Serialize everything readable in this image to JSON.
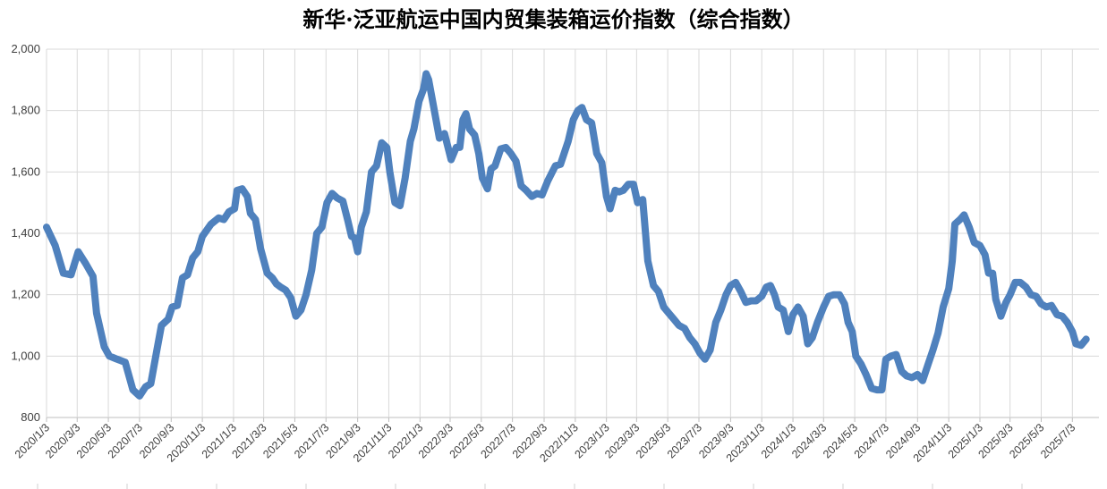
{
  "chart_data": {
    "type": "line",
    "title": "新华·泛亚航运中国内贸集装箱运价指数（综合指数）",
    "xlabel": "",
    "ylabel": "",
    "ylim": [
      800,
      2000
    ],
    "yticks": [
      "800",
      "1,000",
      "1,200",
      "1,400",
      "1,600",
      "1,800",
      "2,000"
    ],
    "ytick_values": [
      800,
      1000,
      1200,
      1400,
      1600,
      1800,
      2000
    ],
    "xticks": [
      "2020/1/3",
      "2020/3/3",
      "2020/5/3",
      "2020/7/3",
      "2020/9/3",
      "2020/11/3",
      "2021/1/3",
      "2021/3/3",
      "2021/5/3",
      "2021/7/3",
      "2021/9/3",
      "2021/11/3",
      "2022/1/3",
      "2022/3/3",
      "2022/5/3",
      "2022/7/3",
      "2022/9/3",
      "2022/11/3",
      "2023/1/3",
      "2023/3/3",
      "2023/5/3",
      "2023/7/3",
      "2023/9/3",
      "2023/11/3",
      "2024/1/3",
      "2024/3/3",
      "2024/5/3",
      "2024/7/3",
      "2024/9/3",
      "2024/11/3",
      "2025/1/3",
      "2025/3/3",
      "2025/5/3",
      "2025/7/3"
    ],
    "grid": true,
    "line_color": "#4F81BD",
    "series": [
      {
        "values": [
          [
            "2020-01-03",
            1420
          ],
          [
            "2020-01-20",
            1360
          ],
          [
            "2020-02-05",
            1270
          ],
          [
            "2020-02-20",
            1265
          ],
          [
            "2020-03-05",
            1340
          ],
          [
            "2020-03-20",
            1300
          ],
          [
            "2020-04-03",
            1260
          ],
          [
            "2020-04-10",
            1140
          ],
          [
            "2020-04-25",
            1030
          ],
          [
            "2020-05-05",
            1000
          ],
          [
            "2020-05-20",
            990
          ],
          [
            "2020-06-05",
            980
          ],
          [
            "2020-06-20",
            890
          ],
          [
            "2020-07-03",
            870
          ],
          [
            "2020-07-15",
            900
          ],
          [
            "2020-07-25",
            910
          ],
          [
            "2020-08-05",
            1010
          ],
          [
            "2020-08-15",
            1100
          ],
          [
            "2020-08-28",
            1120
          ],
          [
            "2020-09-05",
            1160
          ],
          [
            "2020-09-15",
            1165
          ],
          [
            "2020-09-25",
            1255
          ],
          [
            "2020-10-05",
            1265
          ],
          [
            "2020-10-15",
            1320
          ],
          [
            "2020-10-25",
            1340
          ],
          [
            "2020-11-03",
            1390
          ],
          [
            "2020-11-20",
            1430
          ],
          [
            "2020-12-05",
            1450
          ],
          [
            "2020-12-15",
            1445
          ],
          [
            "2020-12-25",
            1470
          ],
          [
            "2021-01-05",
            1480
          ],
          [
            "2021-01-10",
            1540
          ],
          [
            "2021-01-20",
            1545
          ],
          [
            "2021-01-30",
            1520
          ],
          [
            "2021-02-05",
            1465
          ],
          [
            "2021-02-15",
            1445
          ],
          [
            "2021-02-25",
            1350
          ],
          [
            "2021-03-10",
            1270
          ],
          [
            "2021-03-20",
            1255
          ],
          [
            "2021-03-28",
            1235
          ],
          [
            "2021-04-05",
            1225
          ],
          [
            "2021-04-15",
            1215
          ],
          [
            "2021-04-25",
            1190
          ],
          [
            "2021-05-05",
            1130
          ],
          [
            "2021-05-15",
            1150
          ],
          [
            "2021-05-25",
            1200
          ],
          [
            "2021-06-05",
            1280
          ],
          [
            "2021-06-15",
            1400
          ],
          [
            "2021-06-25",
            1420
          ],
          [
            "2021-07-05",
            1500
          ],
          [
            "2021-07-15",
            1530
          ],
          [
            "2021-07-25",
            1515
          ],
          [
            "2021-08-05",
            1505
          ],
          [
            "2021-08-15",
            1440
          ],
          [
            "2021-08-22",
            1390
          ],
          [
            "2021-08-28",
            1385
          ],
          [
            "2021-09-03",
            1340
          ],
          [
            "2021-09-10",
            1420
          ],
          [
            "2021-09-20",
            1470
          ],
          [
            "2021-09-30",
            1600
          ],
          [
            "2021-10-10",
            1620
          ],
          [
            "2021-10-20",
            1695
          ],
          [
            "2021-10-30",
            1680
          ],
          [
            "2021-11-05",
            1600
          ],
          [
            "2021-11-15",
            1500
          ],
          [
            "2021-11-25",
            1490
          ],
          [
            "2021-12-05",
            1580
          ],
          [
            "2021-12-15",
            1700
          ],
          [
            "2021-12-22",
            1740
          ],
          [
            "2022-01-01",
            1830
          ],
          [
            "2022-01-10",
            1870
          ],
          [
            "2022-01-15",
            1920
          ],
          [
            "2022-01-20",
            1900
          ],
          [
            "2022-01-30",
            1810
          ],
          [
            "2022-02-10",
            1710
          ],
          [
            "2022-02-20",
            1725
          ],
          [
            "2022-03-05",
            1640
          ],
          [
            "2022-03-15",
            1680
          ],
          [
            "2022-03-22",
            1680
          ],
          [
            "2022-03-28",
            1770
          ],
          [
            "2022-04-03",
            1790
          ],
          [
            "2022-04-10",
            1740
          ],
          [
            "2022-04-20",
            1720
          ],
          [
            "2022-04-28",
            1660
          ],
          [
            "2022-05-05",
            1580
          ],
          [
            "2022-05-15",
            1545
          ],
          [
            "2022-05-22",
            1610
          ],
          [
            "2022-05-30",
            1620
          ],
          [
            "2022-06-10",
            1675
          ],
          [
            "2022-06-20",
            1680
          ],
          [
            "2022-06-30",
            1660
          ],
          [
            "2022-07-10",
            1635
          ],
          [
            "2022-07-20",
            1555
          ],
          [
            "2022-07-30",
            1540
          ],
          [
            "2022-08-10",
            1520
          ],
          [
            "2022-08-20",
            1530
          ],
          [
            "2022-08-30",
            1525
          ],
          [
            "2022-09-10",
            1570
          ],
          [
            "2022-09-25",
            1620
          ],
          [
            "2022-10-05",
            1625
          ],
          [
            "2022-10-20",
            1700
          ],
          [
            "2022-10-30",
            1770
          ],
          [
            "2022-11-08",
            1800
          ],
          [
            "2022-11-16",
            1810
          ],
          [
            "2022-11-25",
            1770
          ],
          [
            "2022-12-05",
            1760
          ],
          [
            "2022-12-15",
            1660
          ],
          [
            "2022-12-25",
            1630
          ],
          [
            "2023-01-03",
            1520
          ],
          [
            "2023-01-10",
            1480
          ],
          [
            "2023-01-20",
            1540
          ],
          [
            "2023-01-28",
            1535
          ],
          [
            "2023-02-05",
            1540
          ],
          [
            "2023-02-15",
            1560
          ],
          [
            "2023-02-25",
            1560
          ],
          [
            "2023-03-05",
            1500
          ],
          [
            "2023-03-15",
            1510
          ],
          [
            "2023-03-25",
            1310
          ],
          [
            "2023-04-05",
            1230
          ],
          [
            "2023-04-15",
            1210
          ],
          [
            "2023-04-25",
            1160
          ],
          [
            "2023-05-05",
            1140
          ],
          [
            "2023-05-15",
            1120
          ],
          [
            "2023-05-25",
            1100
          ],
          [
            "2023-06-05",
            1090
          ],
          [
            "2023-06-15",
            1060
          ],
          [
            "2023-06-25",
            1040
          ],
          [
            "2023-07-05",
            1010
          ],
          [
            "2023-07-15",
            990
          ],
          [
            "2023-07-25",
            1020
          ],
          [
            "2023-08-05",
            1110
          ],
          [
            "2023-08-15",
            1150
          ],
          [
            "2023-08-25",
            1200
          ],
          [
            "2023-09-03",
            1230
          ],
          [
            "2023-09-13",
            1240
          ],
          [
            "2023-09-23",
            1210
          ],
          [
            "2023-10-03",
            1175
          ],
          [
            "2023-10-13",
            1180
          ],
          [
            "2023-10-23",
            1180
          ],
          [
            "2023-11-03",
            1195
          ],
          [
            "2023-11-12",
            1225
          ],
          [
            "2023-11-20",
            1230
          ],
          [
            "2023-11-28",
            1200
          ],
          [
            "2023-12-05",
            1160
          ],
          [
            "2023-12-15",
            1150
          ],
          [
            "2023-12-25",
            1080
          ],
          [
            "2024-01-03",
            1135
          ],
          [
            "2024-01-13",
            1160
          ],
          [
            "2024-01-23",
            1130
          ],
          [
            "2024-02-01",
            1040
          ],
          [
            "2024-02-10",
            1060
          ],
          [
            "2024-02-20",
            1110
          ],
          [
            "2024-03-03",
            1160
          ],
          [
            "2024-03-13",
            1195
          ],
          [
            "2024-03-23",
            1200
          ],
          [
            "2024-04-03",
            1200
          ],
          [
            "2024-04-13",
            1170
          ],
          [
            "2024-04-20",
            1110
          ],
          [
            "2024-04-28",
            1080
          ],
          [
            "2024-05-05",
            1000
          ],
          [
            "2024-05-15",
            975
          ],
          [
            "2024-05-25",
            940
          ],
          [
            "2024-06-05",
            895
          ],
          [
            "2024-06-15",
            890
          ],
          [
            "2024-06-25",
            890
          ],
          [
            "2024-07-03",
            990
          ],
          [
            "2024-07-13",
            1000
          ],
          [
            "2024-07-23",
            1005
          ],
          [
            "2024-08-03",
            950
          ],
          [
            "2024-08-13",
            935
          ],
          [
            "2024-08-23",
            930
          ],
          [
            "2024-09-03",
            940
          ],
          [
            "2024-09-13",
            920
          ],
          [
            "2024-09-23",
            970
          ],
          [
            "2024-10-03",
            1020
          ],
          [
            "2024-10-13",
            1075
          ],
          [
            "2024-10-23",
            1160
          ],
          [
            "2024-11-03",
            1220
          ],
          [
            "2024-11-10",
            1310
          ],
          [
            "2024-11-15",
            1430
          ],
          [
            "2024-11-25",
            1445
          ],
          [
            "2024-12-03",
            1460
          ],
          [
            "2024-12-13",
            1420
          ],
          [
            "2024-12-23",
            1370
          ],
          [
            "2025-01-03",
            1360
          ],
          [
            "2025-01-13",
            1330
          ],
          [
            "2025-01-20",
            1270
          ],
          [
            "2025-01-28",
            1270
          ],
          [
            "2025-02-03",
            1185
          ],
          [
            "2025-02-13",
            1130
          ],
          [
            "2025-02-23",
            1175
          ],
          [
            "2025-03-03",
            1200
          ],
          [
            "2025-03-13",
            1240
          ],
          [
            "2025-03-23",
            1240
          ],
          [
            "2025-04-03",
            1225
          ],
          [
            "2025-04-13",
            1200
          ],
          [
            "2025-04-23",
            1195
          ],
          [
            "2025-05-03",
            1170
          ],
          [
            "2025-05-13",
            1160
          ],
          [
            "2025-05-23",
            1165
          ],
          [
            "2025-06-03",
            1135
          ],
          [
            "2025-06-13",
            1130
          ],
          [
            "2025-06-23",
            1110
          ],
          [
            "2025-07-03",
            1080
          ],
          [
            "2025-07-10",
            1040
          ],
          [
            "2025-07-20",
            1035
          ],
          [
            "2025-07-30",
            1055
          ]
        ]
      }
    ]
  }
}
